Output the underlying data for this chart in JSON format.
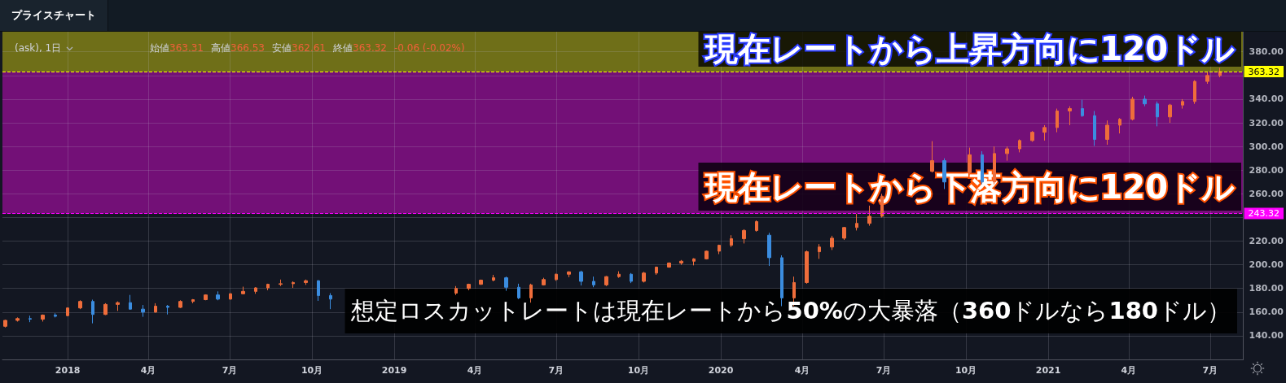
{
  "chart_data": {
    "type": "candlestick",
    "title": "プライスチャート",
    "subtitle": "(ask), 1日",
    "annotations": [
      "始値363.31",
      "高値366.53",
      "安値362.61",
      "終値363.32",
      "-0.06 (-0.02%)",
      "現在レートから上昇方向に120ドル",
      "現在レートから下落方向に120ドル",
      "想定ロスカットレートは現在レートから50%の大暴落（360ドルなら180ドル）"
    ],
    "x": [
      "2017-10-23",
      "2017-11-06",
      "2017-11-20",
      "2017-12-04",
      "2017-12-18",
      "2018-01-01",
      "2018-01-15",
      "2018-01-29",
      "2018-02-12",
      "2018-02-26",
      "2018-03-12",
      "2018-03-26",
      "2018-04-09",
      "2018-04-23",
      "2018-05-07",
      "2018-05-21",
      "2018-06-04",
      "2018-06-18",
      "2018-07-02",
      "2018-07-16",
      "2018-07-30",
      "2018-08-13",
      "2018-08-27",
      "2018-09-10",
      "2018-09-24",
      "2018-10-08",
      "2018-10-22",
      "2019-03-11",
      "2019-03-25",
      "2019-04-08",
      "2019-04-22",
      "2019-05-06",
      "2019-05-20",
      "2019-06-03",
      "2019-06-17",
      "2019-07-01",
      "2019-07-15",
      "2019-07-29",
      "2019-08-12",
      "2019-08-26",
      "2019-09-09",
      "2019-09-23",
      "2019-10-07",
      "2019-10-21",
      "2019-11-04",
      "2019-11-18",
      "2019-12-02",
      "2019-12-16",
      "2019-12-30",
      "2020-01-13",
      "2020-01-27",
      "2020-02-10",
      "2020-02-24",
      "2020-03-09",
      "2020-03-23",
      "2020-04-06",
      "2020-04-20",
      "2020-05-04",
      "2020-05-18",
      "2020-06-01",
      "2020-06-15",
      "2020-06-29",
      "2020-08-24",
      "2020-09-07",
      "2020-10-05",
      "2020-10-19",
      "2020-11-02",
      "2020-11-16",
      "2020-11-30",
      "2020-12-14",
      "2020-12-28",
      "2021-01-11",
      "2021-01-25",
      "2021-02-08",
      "2021-02-22",
      "2021-03-08",
      "2021-03-22",
      "2021-04-05",
      "2021-04-19",
      "2021-05-03",
      "2021-05-17",
      "2021-05-31",
      "2021-06-14",
      "2021-06-28",
      "2021-07-12"
    ],
    "ohlc": [
      [
        148,
        153.5,
        147,
        153
      ],
      [
        153,
        155.5,
        152,
        154.5
      ],
      [
        154.5,
        157,
        151.5,
        154
      ],
      [
        154,
        158,
        152,
        157.5
      ],
      [
        157.5,
        159,
        155.5,
        156.5
      ],
      [
        157,
        164,
        156.5,
        163.5
      ],
      [
        163.5,
        170,
        162.5,
        169
      ],
      [
        169,
        170.5,
        150.5,
        158
      ],
      [
        158,
        167.5,
        157.5,
        166.5
      ],
      [
        166.5,
        169,
        161,
        168
      ],
      [
        168,
        174.5,
        162,
        162.5
      ],
      [
        162.5,
        166,
        156,
        160
      ],
      [
        160,
        167.5,
        159.5,
        165
      ],
      [
        165,
        166,
        158,
        164
      ],
      [
        164,
        170,
        163.5,
        169
      ],
      [
        169,
        171,
        167.5,
        170.5
      ],
      [
        170.5,
        175,
        170,
        174.5
      ],
      [
        174.5,
        177.5,
        170,
        171
      ],
      [
        171,
        176,
        170.5,
        175.5
      ],
      [
        175.5,
        181.5,
        175,
        177.5
      ],
      [
        177.5,
        181,
        175.5,
        180.5
      ],
      [
        180.5,
        184,
        178.5,
        183.5
      ],
      [
        183.5,
        187.5,
        182,
        184
      ],
      [
        184,
        186,
        180.5,
        185
      ],
      [
        185,
        187.5,
        183,
        186.5
      ],
      [
        186.5,
        187,
        169.5,
        174
      ],
      [
        174,
        176,
        162.5,
        171
      ],
      [
        176,
        182,
        174.5,
        180
      ],
      [
        180,
        184,
        178.5,
        183.5
      ],
      [
        183.5,
        187.5,
        183,
        187
      ],
      [
        187,
        191.5,
        186,
        189
      ],
      [
        189,
        190,
        178,
        181
      ],
      [
        181,
        184,
        171,
        172
      ],
      [
        172,
        184,
        168,
        183
      ],
      [
        183,
        189,
        182.5,
        187.5
      ],
      [
        187.5,
        192.5,
        186.5,
        192
      ],
      [
        192,
        194.5,
        189.5,
        194
      ],
      [
        194,
        195,
        182.5,
        186
      ],
      [
        186,
        190,
        181,
        183
      ],
      [
        183,
        190.5,
        182,
        190
      ],
      [
        190,
        194.5,
        189,
        192
      ],
      [
        192,
        193,
        184.5,
        186
      ],
      [
        186,
        194,
        185,
        193
      ],
      [
        193,
        198.5,
        191.5,
        198
      ],
      [
        198,
        202,
        197.5,
        201.5
      ],
      [
        201.5,
        204,
        200,
        203
      ],
      [
        203,
        205.5,
        199.5,
        205
      ],
      [
        205,
        212,
        204.5,
        211.5
      ],
      [
        211.5,
        217,
        209,
        216.5
      ],
      [
        216.5,
        225,
        215,
        222
      ],
      [
        222,
        230,
        218,
        229
      ],
      [
        229,
        237.5,
        228,
        236.5
      ],
      [
        225,
        227,
        199,
        206
      ],
      [
        206,
        208,
        165,
        172
      ],
      [
        172,
        190,
        165,
        185
      ],
      [
        185,
        212,
        184,
        211
      ],
      [
        211,
        217.5,
        205,
        215
      ],
      [
        215,
        224.5,
        212.5,
        222.5
      ],
      [
        222.5,
        232,
        221,
        231.5
      ],
      [
        231.5,
        243,
        229,
        235
      ],
      [
        235,
        250,
        233,
        241
      ],
      [
        241,
        260,
        240,
        258
      ],
      [
        279,
        304.5,
        278,
        288
      ],
      [
        288,
        290,
        264,
        270
      ],
      [
        278,
        299,
        276,
        293
      ],
      [
        293,
        296,
        268,
        270
      ],
      [
        270,
        300,
        268,
        294
      ],
      [
        294,
        300,
        288,
        298
      ],
      [
        298,
        306,
        295,
        305
      ],
      [
        305,
        313,
        304,
        312
      ],
      [
        312,
        318,
        305,
        316
      ],
      [
        316,
        332,
        312,
        330
      ],
      [
        330,
        334,
        318,
        332
      ],
      [
        332,
        339.5,
        325,
        326
      ],
      [
        326,
        330,
        300.5,
        306
      ],
      [
        306,
        322,
        301.5,
        318
      ],
      [
        318,
        324,
        311,
        323
      ],
      [
        323,
        342,
        322,
        340
      ],
      [
        340,
        343,
        334,
        336
      ],
      [
        336,
        338,
        317,
        325
      ],
      [
        325,
        336,
        320,
        335
      ],
      [
        335,
        340,
        332,
        338
      ],
      [
        338,
        356,
        336,
        355
      ],
      [
        355,
        362.5,
        353,
        360
      ],
      [
        360,
        366.53,
        358.5,
        363.32
      ]
    ],
    "colors": [
      "#ef6d3b",
      "#ef6d3b",
      "#3b8de0",
      "#ef6d3b",
      "#3b8de0",
      "#ef6d3b",
      "#ef6d3b",
      "#3b8de0",
      "#ef6d3b",
      "#ef6d3b",
      "#3b8de0",
      "#3b8de0",
      "#ef6d3b",
      "#3b8de0",
      "#ef6d3b",
      "#ef6d3b",
      "#ef6d3b",
      "#3b8de0",
      "#ef6d3b",
      "#ef6d3b",
      "#ef6d3b",
      "#ef6d3b",
      "#ef6d3b",
      "#ef6d3b",
      "#ef6d3b",
      "#3b8de0",
      "#3b8de0",
      "#ef6d3b",
      "#ef6d3b",
      "#ef6d3b",
      "#ef6d3b",
      "#3b8de0",
      "#3b8de0",
      "#ef6d3b",
      "#ef6d3b",
      "#ef6d3b",
      "#ef6d3b",
      "#3b8de0",
      "#3b8de0",
      "#ef6d3b",
      "#ef6d3b",
      "#3b8de0",
      "#ef6d3b",
      "#ef6d3b",
      "#ef6d3b",
      "#ef6d3b",
      "#ef6d3b",
      "#ef6d3b",
      "#ef6d3b",
      "#ef6d3b",
      "#ef6d3b",
      "#ef6d3b",
      "#3b8de0",
      "#3b8de0",
      "#ef6d3b",
      "#ef6d3b",
      "#ef6d3b",
      "#ef6d3b",
      "#ef6d3b",
      "#ef6d3b",
      "#ef6d3b",
      "#ef6d3b",
      "#ef6d3b",
      "#3b8de0",
      "#ef6d3b",
      "#3b8de0",
      "#ef6d3b",
      "#ef6d3b",
      "#ef6d3b",
      "#ef6d3b",
      "#ef6d3b",
      "#ef6d3b",
      "#ef6d3b",
      "#3b8de0",
      "#3b8de0",
      "#ef6d3b",
      "#ef6d3b",
      "#ef6d3b",
      "#3b8de0",
      "#3b8de0",
      "#ef6d3b",
      "#ef6d3b",
      "#ef6d3b",
      "#ef6d3b",
      "#ef6d3b"
    ],
    "xlim": [
      "2017-10-20",
      "2021-08-07"
    ],
    "xticks": [
      {
        "value": "2018-01-01",
        "label": "2018"
      },
      {
        "value": "2018-04-01",
        "label": "4月"
      },
      {
        "value": "2018-07-01",
        "label": "7月"
      },
      {
        "value": "2018-10-01",
        "label": "10月"
      },
      {
        "value": "2019-01-01",
        "label": "2019"
      },
      {
        "value": "2019-04-01",
        "label": "4月"
      },
      {
        "value": "2019-07-01",
        "label": "7月"
      },
      {
        "value": "2019-10-01",
        "label": "10月"
      },
      {
        "value": "2020-01-01",
        "label": "2020"
      },
      {
        "value": "2020-04-01",
        "label": "4月"
      },
      {
        "value": "2020-07-01",
        "label": "7月"
      },
      {
        "value": "2020-10-01",
        "label": "10月"
      },
      {
        "value": "2021-01-01",
        "label": "2021"
      },
      {
        "value": "2021-04-01",
        "label": "4月"
      },
      {
        "value": "2021-07-01",
        "label": "7月"
      }
    ],
    "ylim": [
      120,
      397
    ],
    "yticks": [
      {
        "value": 140,
        "label": "140.00"
      },
      {
        "value": 160,
        "label": "160.00"
      },
      {
        "value": 180,
        "label": "180.00"
      },
      {
        "value": 200,
        "label": "200.00"
      },
      {
        "value": 220,
        "label": "220.00"
      },
      {
        "value": 240,
        "label": null
      },
      {
        "value": 260,
        "label": "260.00"
      },
      {
        "value": 280,
        "label": "280.00"
      },
      {
        "value": 300,
        "label": "300.00"
      },
      {
        "value": 320,
        "label": "320.00"
      },
      {
        "value": 340,
        "label": "340.00"
      },
      {
        "value": 360,
        "label": null
      },
      {
        "value": 380,
        "label": "380.00"
      }
    ],
    "grid": true,
    "ref_lines": [
      {
        "axis": "y",
        "value": 363.32,
        "label": "363.32",
        "color": "#ffff00",
        "line_style": "dashed"
      },
      {
        "axis": "y",
        "value": 243.32,
        "label": "243.32",
        "color": "#ff00ff",
        "line_style": "dashed"
      }
    ],
    "bands": [
      {
        "axis": "y",
        "from": 363.32,
        "to": 397,
        "color": "#6f6f18"
      },
      {
        "axis": "y",
        "from": 243.32,
        "to": 363.32,
        "color": "#731077"
      }
    ]
  }
}
